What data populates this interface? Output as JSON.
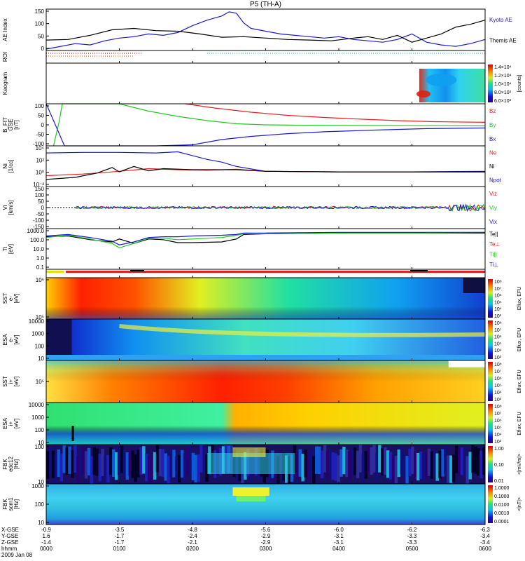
{
  "title": "P5 (TH-A)",
  "date_label": "2009 Jan 08",
  "chart_data": {
    "type": "multi-panel",
    "colors": {
      "red": "#e8201e",
      "green": "#22c822",
      "blue": "#1a1ad0",
      "black": "#000000",
      "cyan": "#18c8c8",
      "orange": "#e07000"
    },
    "x_axis": {
      "row_labels": [
        "X-GSE",
        "Y-GSE",
        "Z-GSE",
        "hhmm"
      ],
      "ticks": [
        {
          "vals": [
            "-0.9",
            "1.6",
            "-1.4",
            "0000"
          ]
        },
        {
          "vals": [
            "-3.5",
            "-1.7",
            "-1.7",
            "0100"
          ]
        },
        {
          "vals": [
            "-4.8",
            "-2.4",
            "-2.1",
            "0200"
          ]
        },
        {
          "vals": [
            "-5.6",
            "-2.9",
            "-2.9",
            "0300"
          ]
        },
        {
          "vals": [
            "-6.0",
            "-3.1",
            "-3.1",
            "0400"
          ]
        },
        {
          "vals": [
            "-6.2",
            "-3.3",
            "-3.3",
            "0500"
          ]
        },
        {
          "vals": [
            "-6.3",
            "-3.4",
            "-3.4",
            "0600"
          ]
        }
      ]
    },
    "panels": [
      {
        "id": "ae",
        "ylabel": [
          "AE Index"
        ],
        "ylim": [
          0,
          150
        ],
        "yticks": [
          "0",
          "50",
          "100",
          "150"
        ],
        "legend": [
          {
            "name": "Kyoto AE",
            "color": "blue"
          },
          {
            "name": "Themis AE",
            "color": "black"
          }
        ],
        "series": [
          {
            "name": "Kyoto AE",
            "color": "blue",
            "x": [
              0,
              0.2,
              0.4,
              0.6,
              0.8,
              1.0,
              1.2,
              1.4,
              1.6,
              1.8,
              2.0,
              2.2,
              2.4,
              2.5,
              2.6,
              2.7,
              2.8,
              3.0,
              3.2,
              3.4,
              3.6,
              3.8,
              4.0,
              4.2,
              4.4,
              4.6,
              4.8,
              5.0,
              5.2,
              5.4,
              5.6,
              5.8,
              6.0
            ],
            "y": [
              5,
              15,
              25,
              20,
              35,
              45,
              50,
              60,
              55,
              65,
              90,
              110,
              125,
              140,
              135,
              100,
              80,
              70,
              60,
              55,
              50,
              45,
              50,
              40,
              35,
              30,
              40,
              60,
              30,
              20,
              15,
              25,
              40
            ]
          },
          {
            "name": "Themis AE",
            "color": "black",
            "x": [
              0,
              0.3,
              0.6,
              0.9,
              1.2,
              1.5,
              1.8,
              2.1,
              2.4,
              2.7,
              3.0,
              3.3,
              3.6,
              3.9,
              4.2,
              4.4,
              4.6,
              4.8,
              5.0,
              5.2,
              5.4,
              5.6,
              5.8,
              6.0
            ],
            "y": [
              38,
              40,
              55,
              75,
              80,
              72,
              70,
              60,
              48,
              50,
              45,
              40,
              38,
              35,
              45,
              50,
              40,
              55,
              30,
              45,
              60,
              85,
              95,
              110
            ]
          }
        ]
      },
      {
        "id": "roi",
        "ylabel": [
          "ROI"
        ],
        "segments": [
          {
            "color": "red",
            "x0": 0.0,
            "x1": 1.3,
            "row": 0
          },
          {
            "color": "orange",
            "x0": 0.0,
            "x1": 1.2,
            "row": 1
          },
          {
            "color": "cyan",
            "x0": 2.2,
            "x1": 6.0,
            "row": 0
          }
        ]
      },
      {
        "id": "keogram",
        "ylabel": [
          "Keogram"
        ],
        "colorbar": {
          "label": "[counts]",
          "ticks": [
            "1.4×10⁴",
            "1.2×10⁴",
            "1.0×10⁴",
            "8.0×10³",
            "6.0×10³"
          ]
        }
      },
      {
        "id": "bfit",
        "ylabel": [
          "B_FIT",
          "GSE",
          "[nT]"
        ],
        "ylim": [
          -100,
          100
        ],
        "yticks": [
          "-100",
          "-50",
          "0",
          "50",
          "100"
        ],
        "legend": [
          {
            "name": "Bz",
            "color": "red"
          },
          {
            "name": "By",
            "color": "green"
          },
          {
            "name": "Bx",
            "color": "blue"
          }
        ],
        "series": [
          {
            "name": "Bz",
            "color": "red",
            "x": [
              1.9,
              2.3,
              2.8,
              3.3,
              3.8,
              4.3,
              4.8,
              5.3,
              6.0
            ],
            "y": [
              100,
              80,
              60,
              45,
              35,
              27,
              20,
              15,
              12
            ]
          },
          {
            "name": "By",
            "color": "green",
            "x": [
              0.1,
              0.18,
              0.22,
              1.0,
              1.4,
              1.8,
              2.2,
              2.6,
              3.0,
              3.5,
              4.0,
              5.0,
              6.0
            ],
            "y": [
              -100,
              20,
              100,
              100,
              65,
              40,
              20,
              5,
              0,
              -2,
              -3,
              -4,
              -5
            ]
          },
          {
            "name": "Bx",
            "color": "blue",
            "x": [
              0.0,
              0.15,
              0.25,
              1.5,
              2.0,
              2.4,
              2.8,
              3.3,
              3.8,
              4.5,
              5.2,
              6.0
            ],
            "y": [
              100,
              -20,
              -100,
              -100,
              -95,
              -70,
              -55,
              -42,
              -33,
              -25,
              -18,
              -15
            ]
          }
        ]
      },
      {
        "id": "ni",
        "ylabel": [
          "Ni",
          "[1/cc]"
        ],
        "yticks": [
          "10⁻²",
          "10⁰",
          "10²",
          "10⁴"
        ],
        "legend": [
          {
            "name": "Ne",
            "color": "red"
          },
          {
            "name": "Ni",
            "color": "black"
          },
          {
            "name": "Npot",
            "color": "blue"
          }
        ],
        "series": [
          {
            "name": "Npot",
            "color": "blue",
            "x": [
              0.0,
              0.5,
              1.0,
              1.5,
              1.8,
              2.0,
              2.2,
              2.4,
              2.6,
              3.0,
              4.0,
              5.0,
              6.0
            ],
            "y": [
              3.7,
              3.8,
              3.8,
              3.7,
              3.9,
              3.2,
              2.5,
              2.0,
              1.2,
              0.3,
              0.2,
              0.2,
              0.3
            ]
          },
          {
            "name": "Ne",
            "color": "red",
            "x": [
              0.0,
              0.5,
              1.0,
              1.4,
              1.8,
              2.2,
              2.6,
              3.0,
              4.0,
              5.0,
              6.0
            ],
            "y": [
              -0.5,
              -0.2,
              0.3,
              0.8,
              0.6,
              0.5,
              0.7,
              0.3,
              0.2,
              0.2,
              0.2
            ]
          },
          {
            "name": "Ni",
            "color": "black",
            "x": [
              0.0,
              0.4,
              0.7,
              0.9,
              1.0,
              1.2,
              1.4,
              1.6,
              2.0,
              2.6,
              3.0,
              4.0,
              5.0,
              6.0
            ],
            "y": [
              -1.2,
              -0.8,
              0.0,
              1.0,
              0.2,
              1.2,
              0.4,
              0.8,
              0.6,
              0.6,
              0.3,
              0.2,
              0.2,
              0.2
            ]
          }
        ]
      },
      {
        "id": "vi",
        "ylabel": [
          "Vi",
          "[km/s]"
        ],
        "ylim": [
          -150,
          150
        ],
        "yticks": [
          "-150",
          "-100",
          "-50",
          "0",
          "50",
          "100",
          "150"
        ],
        "legend": [
          {
            "name": "Viz",
            "color": "red"
          },
          {
            "name": "Viy",
            "color": "green"
          },
          {
            "name": "Vix",
            "color": "blue"
          }
        ],
        "series": [
          {
            "name": "Vix",
            "color": "blue",
            "x": [
              0.4,
              6.0
            ],
            "y": [
              0,
              0
            ]
          },
          {
            "name": "Viy",
            "color": "green",
            "x": [
              0.4,
              6.0
            ],
            "y": [
              0,
              0
            ]
          },
          {
            "name": "Viz",
            "color": "red",
            "x": [
              0.4,
              6.0
            ],
            "y": [
              0,
              0
            ]
          }
        ]
      },
      {
        "id": "ti",
        "ylabel": [
          "Ti",
          "[eV]"
        ],
        "yticks": [
          "0.1",
          "1.0",
          "10.0",
          "100.0",
          "1000.0"
        ],
        "legend": [
          {
            "name": "Te||",
            "color": "black"
          },
          {
            "name": "Te⊥",
            "color": "red"
          },
          {
            "name": "Ti||",
            "color": "green"
          },
          {
            "name": "Ti⊥",
            "color": "blue"
          }
        ],
        "series": [
          {
            "name": "Te||",
            "color": "black",
            "x": [
              0.0,
              0.3,
              0.6,
              0.9,
              1.0,
              1.2,
              1.4,
              1.6,
              1.8,
              2.0,
              2.4,
              2.6,
              2.7,
              3.0,
              4.0,
              5.0,
              6.0
            ],
            "y": [
              2.9,
              3.0,
              2.5,
              2.2,
              2.6,
              2.0,
              2.6,
              2.5,
              2.1,
              2.1,
              2.2,
              2.6,
              3.2,
              3.3,
              3.4,
              3.4,
              3.4
            ]
          },
          {
            "name": "Ti||",
            "color": "green",
            "x": [
              0.0,
              0.3,
              0.6,
              0.9,
              1.0,
              1.2,
              1.4,
              1.6,
              1.8,
              2.0,
              2.4,
              2.6,
              2.7,
              3.0,
              4.0,
              5.0,
              6.0
            ],
            "y": [
              2.8,
              3.1,
              2.6,
              2.0,
              1.4,
              2.0,
              2.7,
              2.7,
              2.5,
              2.6,
              2.8,
              3.1,
              3.3,
              3.3,
              3.4,
              3.4,
              3.5
            ]
          },
          {
            "name": "Ti⊥",
            "color": "blue",
            "x": [
              0.0,
              0.3,
              0.6,
              0.9,
              1.0,
              1.2,
              1.4,
              1.6,
              1.8,
              2.0,
              2.4,
              2.6,
              2.7,
              3.0,
              4.0,
              5.0,
              6.0
            ],
            "y": [
              3.0,
              3.2,
              2.8,
              2.3,
              1.8,
              2.2,
              2.8,
              2.9,
              2.9,
              3.0,
              3.1,
              3.2,
              3.4,
              3.4,
              3.5,
              3.5,
              3.5
            ]
          }
        ]
      },
      {
        "id": "mode",
        "ylabel": []
      },
      {
        "id": "sst_e",
        "ylabel": [
          "SST",
          "e-",
          "[eV]"
        ],
        "yticks": [
          "10⁵",
          "10⁶"
        ],
        "colorbar": {
          "label": "Eflux, EFU",
          "ticks": [
            "10⁸",
            "10⁷",
            "10⁶",
            "10⁵",
            "10⁴",
            "10³"
          ]
        }
      },
      {
        "id": "esa_e",
        "ylabel": [
          "ESA",
          "e-",
          "[eV]"
        ],
        "yticks": [
          "10",
          "100",
          "1000",
          "10000"
        ],
        "colorbar": {
          "label": "Eflux, EFU",
          "ticks": [
            "10⁸",
            "10⁷",
            "10⁶",
            "10⁵",
            "10⁴",
            "10³"
          ]
        }
      },
      {
        "id": "sst_i",
        "ylabel": [
          "SST",
          "i+",
          "[eV]"
        ],
        "yticks": [
          "10⁵"
        ],
        "colorbar": {
          "label": "Eflux, EFU",
          "ticks": [
            "10⁸",
            "10⁷",
            "10⁶",
            "10⁵",
            "10⁴",
            "10³"
          ]
        }
      },
      {
        "id": "esa_i",
        "ylabel": [
          "ESA",
          "i+",
          "[eV]"
        ],
        "yticks": [
          "10",
          "100",
          "1000",
          "10000"
        ],
        "colorbar": {
          "label": "Eflux, EFU",
          "ticks": [
            "10⁸",
            "10⁷",
            "10⁶",
            "10⁵",
            "10⁴",
            "10³"
          ]
        }
      },
      {
        "id": "fbk_e",
        "ylabel": [
          "FBK",
          "edc12",
          "[Hz]"
        ],
        "yticks": [
          "10",
          "100"
        ],
        "colorbar": {
          "label": "<|mV/m|>",
          "ticks": [
            "1.00",
            "0.10",
            "0.01"
          ]
        }
      },
      {
        "id": "fbk_s",
        "ylabel": [
          "FBK",
          "scm1",
          "[Hz]"
        ],
        "yticks": [
          "10",
          "100",
          "1000"
        ],
        "colorbar": {
          "label": "<|nT|>",
          "ticks": [
            "1.0000",
            "0.1000",
            "0.0100",
            "0.0010",
            "0.0001"
          ]
        }
      }
    ]
  }
}
